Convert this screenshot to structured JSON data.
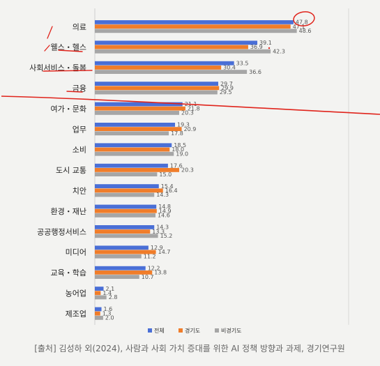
{
  "chart_data": {
    "type": "bar",
    "orientation": "horizontal",
    "categories": [
      "의료",
      "웰스・헬스",
      "사회서비스・돌봄",
      "금융",
      "여가・문화",
      "업무",
      "소비",
      "도시 교통",
      "치안",
      "환경・재난",
      "공공행정서비스",
      "미디어",
      "교육・학습",
      "농어업",
      "제조업"
    ],
    "series": [
      {
        "name": "전체",
        "color": "#4a6fd6",
        "values": [
          47.8,
          39.1,
          33.5,
          29.7,
          21.1,
          19.3,
          18.5,
          17.6,
          15.4,
          14.8,
          14.3,
          12.9,
          12.2,
          2.1,
          1.6
        ]
      },
      {
        "name": "경기도",
        "color": "#f07d2a",
        "values": [
          47.1,
          36.9,
          30.4,
          29.9,
          21.8,
          20.9,
          18.0,
          20.3,
          16.4,
          14.9,
          13.3,
          14.7,
          13.8,
          1.4,
          1.3
        ]
      },
      {
        "name": "비경기도",
        "color": "#a6a6a6",
        "values": [
          48.6,
          42.3,
          36.6,
          29.5,
          20.3,
          17.8,
          19.0,
          15.0,
          14.3,
          14.6,
          15.2,
          11.2,
          10.7,
          2.8,
          2.0
        ]
      }
    ],
    "value_labels": [
      [
        "47.8",
        "47.1",
        "48.6"
      ],
      [
        "39.1",
        "36.9",
        "42.3"
      ],
      [
        "33.5",
        "30.4",
        "36.6"
      ],
      [
        "29.7",
        "29.9",
        "29.5"
      ],
      [
        "21.1",
        "21.8",
        "20.3"
      ],
      [
        "19.3",
        "20.9",
        "17.8"
      ],
      [
        "18.5",
        "18.0",
        "19.0"
      ],
      [
        "17.6",
        "20.3",
        "15.0"
      ],
      [
        "15.4",
        "16.4",
        "14.3"
      ],
      [
        "14.8",
        "14.9",
        "14.6"
      ],
      [
        "14.3",
        "13.3",
        "15.2"
      ],
      [
        "12.9",
        "14.7",
        "11.2"
      ],
      [
        "12.2",
        "13.8",
        "10.7"
      ],
      [
        "2.1",
        "1.4",
        "2.8"
      ],
      [
        "1.6",
        "1.3",
        "2.0"
      ]
    ],
    "xlim": [
      0,
      55
    ],
    "legend_position": "bottom-center",
    "grid": false
  },
  "source": "[출처] 김성하 외(2024), 사람과 사회 가치 증대를 위한 AI 정책 방향과 과제, 경기연구원",
  "annotations": {
    "red_color": "#e0231b",
    "underlined_categories": [
      "웰스・헬스",
      "사회서비스・돌봄",
      "금융"
    ],
    "circled_value": "47.8"
  }
}
